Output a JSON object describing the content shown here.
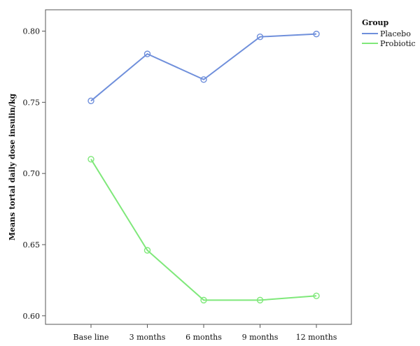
{
  "chart_data": {
    "type": "line",
    "title": "",
    "xlabel": "",
    "ylabel": "Means tortal daily dose insulin/kg",
    "categories": [
      "Base line",
      "3 months",
      "6 months",
      "9 months",
      "12 months"
    ],
    "ylim": [
      0.594,
      0.815
    ],
    "yticks": [
      0.6,
      0.65,
      0.7,
      0.75,
      0.8
    ],
    "ytick_labels": [
      "0.60",
      "0.65",
      "0.70",
      "0.75",
      "0.80"
    ],
    "grid": false,
    "legend": {
      "title": "Group",
      "placement": "right"
    },
    "series": [
      {
        "name": "Placebo",
        "color": "#6f8fdb",
        "values": [
          0.751,
          0.784,
          0.766,
          0.796,
          0.798
        ]
      },
      {
        "name": "Probiotic",
        "color": "#7fe87a",
        "values": [
          0.71,
          0.646,
          0.611,
          0.611,
          0.614
        ]
      }
    ]
  }
}
